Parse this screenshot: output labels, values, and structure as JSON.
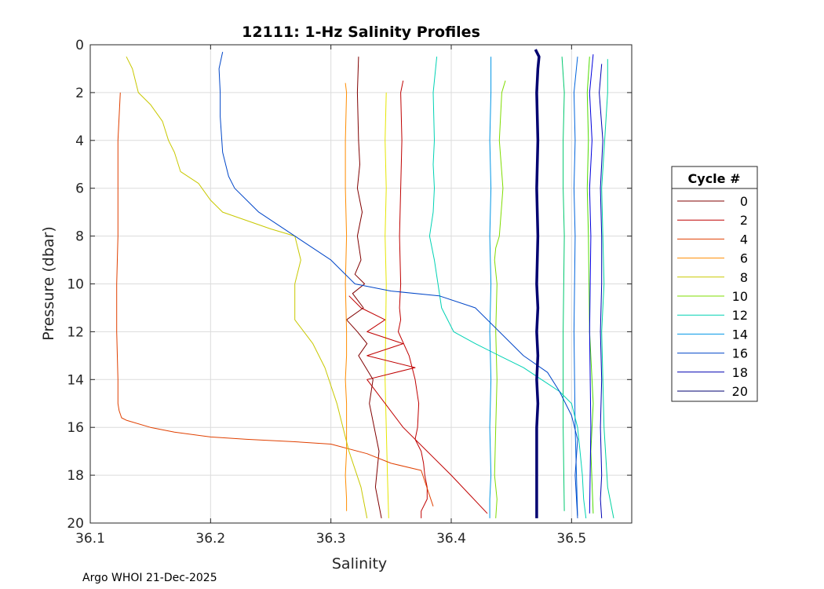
{
  "chart_data": {
    "type": "line",
    "title": "12111: 1-Hz Salinity Profiles",
    "xlabel": "Salinity",
    "ylabel": "Pressure (dbar)",
    "xlim": [
      36.1,
      36.55
    ],
    "ylim": [
      0,
      20
    ],
    "y_reversed": true,
    "grid": true,
    "xticks": [
      36.1,
      36.2,
      36.3,
      36.4,
      36.5
    ],
    "xtick_labels": [
      "36.1",
      "36.2",
      "36.3",
      "36.4",
      "36.5"
    ],
    "yticks": [
      0,
      2,
      4,
      6,
      8,
      10,
      12,
      14,
      16,
      18,
      20
    ],
    "ytick_labels": [
      "0",
      "2",
      "4",
      "6",
      "8",
      "10",
      "12",
      "14",
      "16",
      "18",
      "20"
    ],
    "legend": {
      "title": "Cycle #",
      "location": "outside-right"
    },
    "footer": "Argo WHOI 21-Dec-2025",
    "series": [
      {
        "name": "0",
        "color": "#800000",
        "width": 1,
        "x": [
          36.323,
          36.322,
          36.323,
          36.324,
          36.322,
          36.326,
          36.322,
          36.325,
          36.32,
          36.328,
          36.318,
          36.327,
          36.313,
          36.322,
          36.33,
          36.323,
          36.335,
          36.332,
          36.34,
          36.337,
          36.342
        ],
        "y": [
          0.5,
          2,
          4,
          5,
          6,
          7,
          8,
          9,
          9.6,
          10,
          10.4,
          11,
          11.5,
          12,
          12.5,
          13,
          14,
          15,
          17,
          18.5,
          19.8
        ]
      },
      {
        "name": "2",
        "color": "#bf0000",
        "width": 1,
        "x": [
          36.36,
          36.358,
          36.359,
          36.358,
          36.357,
          36.358,
          36.357,
          36.358,
          36.356,
          36.365,
          36.37,
          36.373,
          36.372,
          36.37,
          36.375,
          36.377,
          36.378,
          36.38,
          36.38,
          36.375,
          36.375
        ],
        "y": [
          1.5,
          2,
          4,
          6,
          8,
          10,
          11,
          11.5,
          12,
          13,
          14,
          15,
          16,
          16.5,
          17,
          17.5,
          18,
          18.5,
          19,
          19.5,
          19.8
        ]
      },
      {
        "name": "4",
        "color": "#e04000",
        "width": 1,
        "x": [
          36.125,
          36.123,
          36.123,
          36.123,
          36.122,
          36.122,
          36.123,
          36.123,
          36.124,
          36.126,
          36.13,
          36.15,
          36.17,
          36.2,
          36.23,
          36.27,
          36.3,
          36.33,
          36.35,
          36.375,
          36.385
        ],
        "y": [
          2,
          4,
          6,
          8,
          10,
          12,
          14,
          15,
          15.3,
          15.6,
          15.7,
          16,
          16.2,
          16.4,
          16.5,
          16.6,
          16.7,
          17.1,
          17.5,
          17.8,
          19.3
        ]
      },
      {
        "name": "6",
        "color": "#ff8c00",
        "width": 1,
        "x": [
          36.312,
          36.313,
          36.312,
          36.312,
          36.313,
          36.312,
          36.313,
          36.313,
          36.312,
          36.313,
          36.313,
          36.313,
          36.312,
          36.313,
          36.313
        ],
        "y": [
          1.6,
          2,
          4,
          6,
          8,
          10,
          12,
          13,
          14,
          15,
          16,
          17,
          18,
          19,
          19.5
        ]
      },
      {
        "name": "8",
        "color": "#c8c800",
        "width": 1,
        "x": [
          36.13,
          36.135,
          36.14,
          36.15,
          36.16,
          36.165,
          36.17,
          36.175,
          36.19,
          36.2,
          36.21,
          36.25,
          36.27,
          36.275,
          36.27,
          36.27,
          36.27,
          36.285,
          36.295,
          36.305,
          36.315,
          36.325,
          36.33
        ],
        "y": [
          0.5,
          1,
          2,
          2.5,
          3.2,
          4,
          4.5,
          5.3,
          5.8,
          6.5,
          7,
          7.7,
          8,
          9,
          10,
          11,
          11.5,
          12.5,
          13.5,
          15,
          17,
          18.5,
          19.8
        ]
      },
      {
        "name": "10",
        "color": "#7fdc00",
        "width": 1,
        "x": [
          36.445,
          36.442,
          36.44,
          36.443,
          36.44,
          36.437,
          36.436,
          36.438,
          36.437,
          36.438,
          36.437,
          36.436,
          36.438,
          36.437
        ],
        "y": [
          1.5,
          2,
          4,
          6,
          8,
          8.5,
          9,
          10,
          12,
          14,
          16,
          18,
          19,
          19.8
        ]
      },
      {
        "name": "12",
        "color": "#00d2b4",
        "width": 1,
        "x": [
          36.388,
          36.385,
          36.386,
          36.385,
          36.386,
          36.385,
          36.382,
          36.386,
          36.389,
          36.392,
          36.402,
          36.42,
          36.44,
          36.46,
          36.475,
          36.49,
          36.5,
          36.505,
          36.507,
          36.509,
          36.51,
          36.512
        ],
        "y": [
          0.5,
          2,
          4,
          5,
          6,
          7,
          8,
          9,
          10,
          11,
          12,
          12.5,
          13,
          13.5,
          14,
          14.5,
          15,
          16,
          17,
          18,
          19,
          19.8
        ]
      },
      {
        "name": "14",
        "color": "#0096e6",
        "width": 1,
        "x": [
          36.433,
          36.433,
          36.432,
          36.433,
          36.432,
          36.433,
          36.432,
          36.433,
          36.432,
          36.433,
          36.432,
          36.432
        ],
        "y": [
          0.5,
          2,
          4,
          6,
          8,
          10,
          12,
          14,
          16,
          18,
          19,
          19.8
        ]
      },
      {
        "name": "16",
        "color": "#0046c8",
        "width": 1,
        "x": [
          36.21,
          36.207,
          36.208,
          36.208,
          36.21,
          36.215,
          36.22,
          36.24,
          36.27,
          36.3,
          36.32,
          36.35,
          36.39,
          36.42,
          36.44,
          36.46,
          36.48,
          36.49,
          36.5,
          36.505,
          36.503,
          36.505
        ],
        "y": [
          0.3,
          1,
          2,
          3,
          4.5,
          5.5,
          6,
          7,
          8,
          9,
          10,
          10.3,
          10.5,
          11,
          12,
          13,
          13.7,
          14.5,
          15.5,
          16.5,
          18,
          19.8
        ]
      },
      {
        "name": "18",
        "color": "#0000b4",
        "width": 1,
        "x": [
          36.525,
          36.523,
          36.526,
          36.524,
          36.525,
          36.525,
          36.524,
          36.525,
          36.524,
          36.525,
          36.524,
          36.525
        ],
        "y": [
          0.8,
          2,
          4,
          6,
          8,
          10,
          12,
          14,
          16,
          18,
          19,
          19.8
        ]
      },
      {
        "name": "20",
        "color": "#000070",
        "width": 3.5,
        "x": [
          36.47,
          36.473,
          36.472,
          36.471,
          36.472,
          36.471,
          36.472,
          36.471,
          36.472,
          36.471,
          36.472,
          36.471,
          36.472,
          36.471,
          36.471,
          36.471
        ],
        "y": [
          0.2,
          0.5,
          1,
          2,
          4,
          6,
          8,
          10,
          11,
          12,
          13,
          14,
          15,
          16,
          18,
          19.8
        ]
      }
    ],
    "extra_traces": [
      {
        "color": "#00c86e",
        "width": 1,
        "x": [
          36.492,
          36.494,
          36.493,
          36.493,
          36.494,
          36.493,
          36.493,
          36.494
        ],
        "y": [
          0.5,
          2,
          4,
          6,
          8,
          12,
          16,
          19.5
        ]
      },
      {
        "color": "#50dc00",
        "width": 1,
        "x": [
          36.515,
          36.513,
          36.514,
          36.513,
          36.514,
          36.515,
          36.518,
          36.516,
          36.518
        ],
        "y": [
          0.5,
          2,
          4,
          6,
          8,
          12,
          15,
          17,
          19.6
        ]
      },
      {
        "color": "#0064dc",
        "width": 1,
        "x": [
          36.505,
          36.502,
          36.503,
          36.502,
          36.503,
          36.502,
          36.503,
          36.505
        ],
        "y": [
          0.5,
          2,
          4,
          6,
          8,
          12,
          16,
          19.7
        ]
      },
      {
        "color": "#0000dc",
        "width": 1,
        "x": [
          36.518,
          36.515,
          36.517,
          36.515,
          36.516,
          36.515,
          36.516,
          36.515
        ],
        "y": [
          0.4,
          2,
          4,
          6,
          8,
          12,
          16,
          19.6
        ]
      },
      {
        "color": "#00d2a0",
        "width": 1,
        "x": [
          36.53,
          36.53,
          36.525,
          36.527,
          36.525,
          36.527,
          36.53,
          36.535
        ],
        "y": [
          0.6,
          2,
          6,
          10,
          12,
          16,
          18.5,
          19.8
        ]
      },
      {
        "color": "#e6e600",
        "width": 1,
        "x": [
          36.346,
          36.345,
          36.346,
          36.345,
          36.346,
          36.345,
          36.347,
          36.348
        ],
        "y": [
          2,
          4,
          6,
          8,
          10,
          14,
          18,
          19.8
        ]
      },
      {
        "color": "#c00000",
        "width": 1,
        "x": [
          36.315,
          36.325,
          36.345,
          36.33,
          36.36,
          36.33,
          36.37,
          36.33,
          36.36,
          36.4,
          36.43
        ],
        "y": [
          10.5,
          11,
          11.5,
          12,
          12.5,
          13,
          13.5,
          14,
          16,
          18,
          19.6
        ]
      }
    ]
  }
}
